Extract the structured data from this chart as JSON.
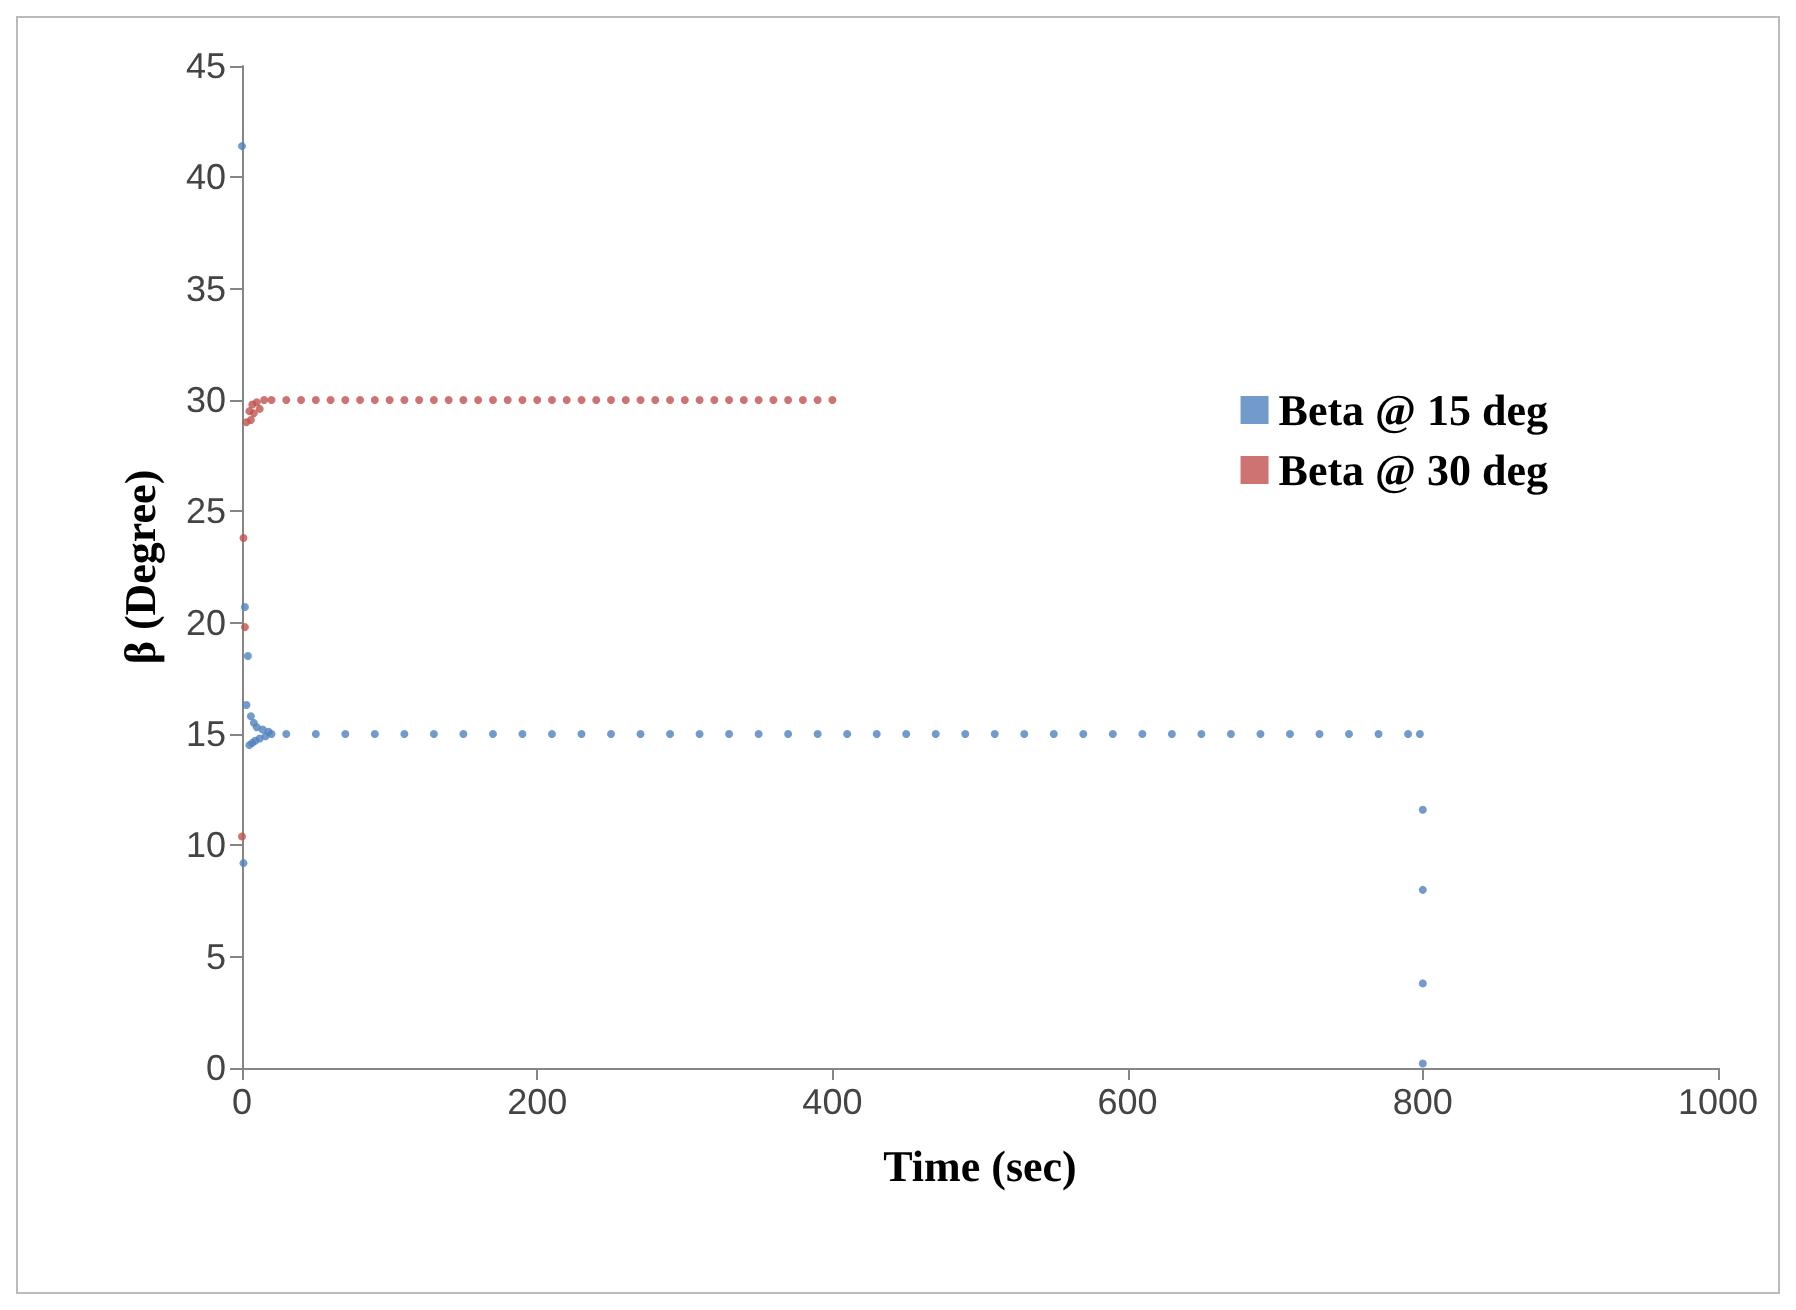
{
  "chart_data": {
    "type": "scatter",
    "xlabel": "Time (sec)",
    "ylabel": "β (Degree)",
    "xlim": [
      0,
      1000
    ],
    "xticks": [
      0,
      200,
      400,
      600,
      800,
      1000
    ],
    "ylim": [
      0,
      45
    ],
    "yticks": [
      0,
      5,
      10,
      15,
      20,
      25,
      30,
      35,
      40,
      45
    ],
    "grid": false,
    "legend": "right",
    "marker": "circle",
    "series": [
      {
        "name": "Beta @ 15 deg",
        "color": "#4f81bd",
        "x": [
          0,
          1,
          2,
          3,
          4,
          5,
          6,
          7,
          8,
          9,
          10,
          12,
          14,
          16,
          18,
          20,
          30,
          50,
          70,
          90,
          110,
          130,
          150,
          170,
          190,
          210,
          230,
          250,
          270,
          290,
          310,
          330,
          350,
          370,
          390,
          410,
          430,
          450,
          470,
          490,
          510,
          530,
          550,
          570,
          590,
          610,
          630,
          650,
          670,
          690,
          710,
          730,
          750,
          770,
          790,
          798,
          800,
          800,
          800,
          800
        ],
        "values": [
          41.4,
          9.2,
          20.7,
          16.3,
          18.5,
          14.5,
          15.8,
          14.6,
          15.5,
          14.7,
          15.3,
          14.8,
          15.2,
          14.9,
          15.1,
          15,
          15,
          15,
          15,
          15,
          15,
          15,
          15,
          15,
          15,
          15,
          15,
          15,
          15,
          15,
          15,
          15,
          15,
          15,
          15,
          15,
          15,
          15,
          15,
          15,
          15,
          15,
          15,
          15,
          15,
          15,
          15,
          15,
          15,
          15,
          15,
          15,
          15,
          15,
          15,
          15,
          11.6,
          8.0,
          3.8,
          0.2
        ]
      },
      {
        "name": "Beta @ 30 deg",
        "color": "#c0504d",
        "x": [
          0,
          1,
          2,
          3,
          4,
          5,
          6,
          7,
          8,
          10,
          12,
          15,
          20,
          30,
          40,
          50,
          60,
          70,
          80,
          90,
          100,
          110,
          120,
          130,
          140,
          150,
          160,
          170,
          180,
          190,
          200,
          210,
          220,
          230,
          240,
          250,
          260,
          270,
          280,
          290,
          300,
          310,
          320,
          330,
          340,
          350,
          360,
          370,
          380,
          390,
          400
        ],
        "values": [
          10.4,
          23.8,
          19.8,
          29.0,
          null,
          29.5,
          29.1,
          29.8,
          29.4,
          29.9,
          29.6,
          30,
          30,
          30,
          30,
          30,
          30,
          30,
          30,
          30,
          30,
          30,
          30,
          30,
          30,
          30,
          30,
          30,
          30,
          30,
          30,
          30,
          30,
          30,
          30,
          30,
          30,
          30,
          30,
          30,
          30,
          30,
          30,
          30,
          30,
          30,
          30,
          30,
          30,
          30,
          30
        ]
      }
    ]
  }
}
